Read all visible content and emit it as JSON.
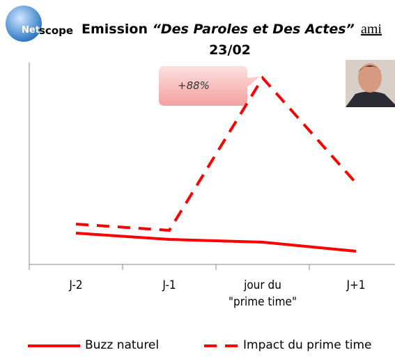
{
  "logo": [
    "Net",
    "scope"
  ],
  "brand": "ami",
  "chart_data": {
    "type": "line",
    "title": [
      "Emission ",
      "“Des Paroles et Des Actes”"
    ],
    "subtitle": "23/02",
    "annotation": "+88%",
    "categories": [
      "J-2",
      "J-1",
      "jour du\n\"prime time\"",
      "J+1"
    ],
    "series": [
      {
        "name": "Buzz naturel",
        "color": "#ff0000",
        "dashed": false,
        "values": [
          45,
          36,
          32,
          19
        ]
      },
      {
        "name": "Impact du prime time",
        "color": "#ff0000",
        "dashed": true,
        "values": [
          58,
          49,
          268,
          117
        ]
      }
    ],
    "ylim": [
      0,
      290
    ]
  }
}
